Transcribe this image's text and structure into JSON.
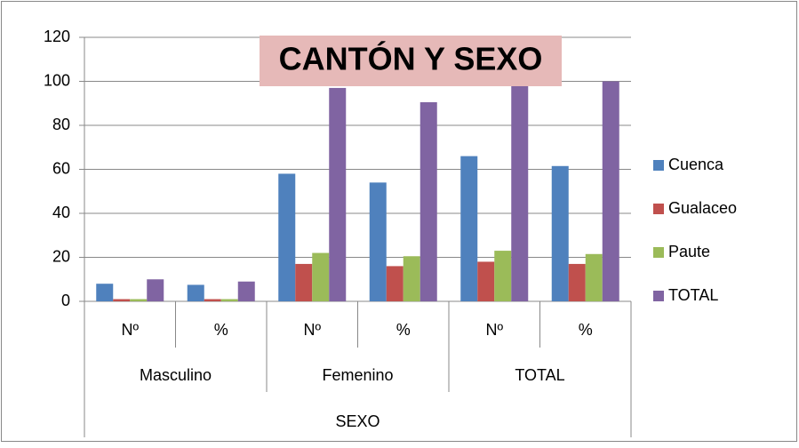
{
  "chart_data": {
    "type": "bar",
    "title": "CANTÓN Y SEXO",
    "categories": [
      "Nº",
      "%",
      "Nº",
      "%",
      "Nº",
      "%"
    ],
    "category_groups": [
      "Masculino",
      "Femenino",
      "TOTAL"
    ],
    "category_group_title": "SEXO",
    "series": [
      {
        "name": "Cuenca",
        "color": "#4f81bd",
        "values": [
          8,
          7.5,
          58,
          54,
          66,
          61.5
        ]
      },
      {
        "name": "Gualaceo",
        "color": "#c0504d",
        "values": [
          1,
          1,
          17,
          16,
          18,
          17
        ]
      },
      {
        "name": "Paute",
        "color": "#9bbb59",
        "values": [
          1,
          1,
          22,
          20.5,
          23,
          21.5
        ]
      },
      {
        "name": "TOTAL",
        "color": "#8064a2",
        "values": [
          10,
          9,
          97,
          90.5,
          107,
          100
        ]
      }
    ],
    "ylim": [
      0,
      120
    ],
    "yticks": [
      0,
      20,
      40,
      60,
      80,
      100,
      120
    ],
    "grid": true,
    "legend": "right"
  }
}
